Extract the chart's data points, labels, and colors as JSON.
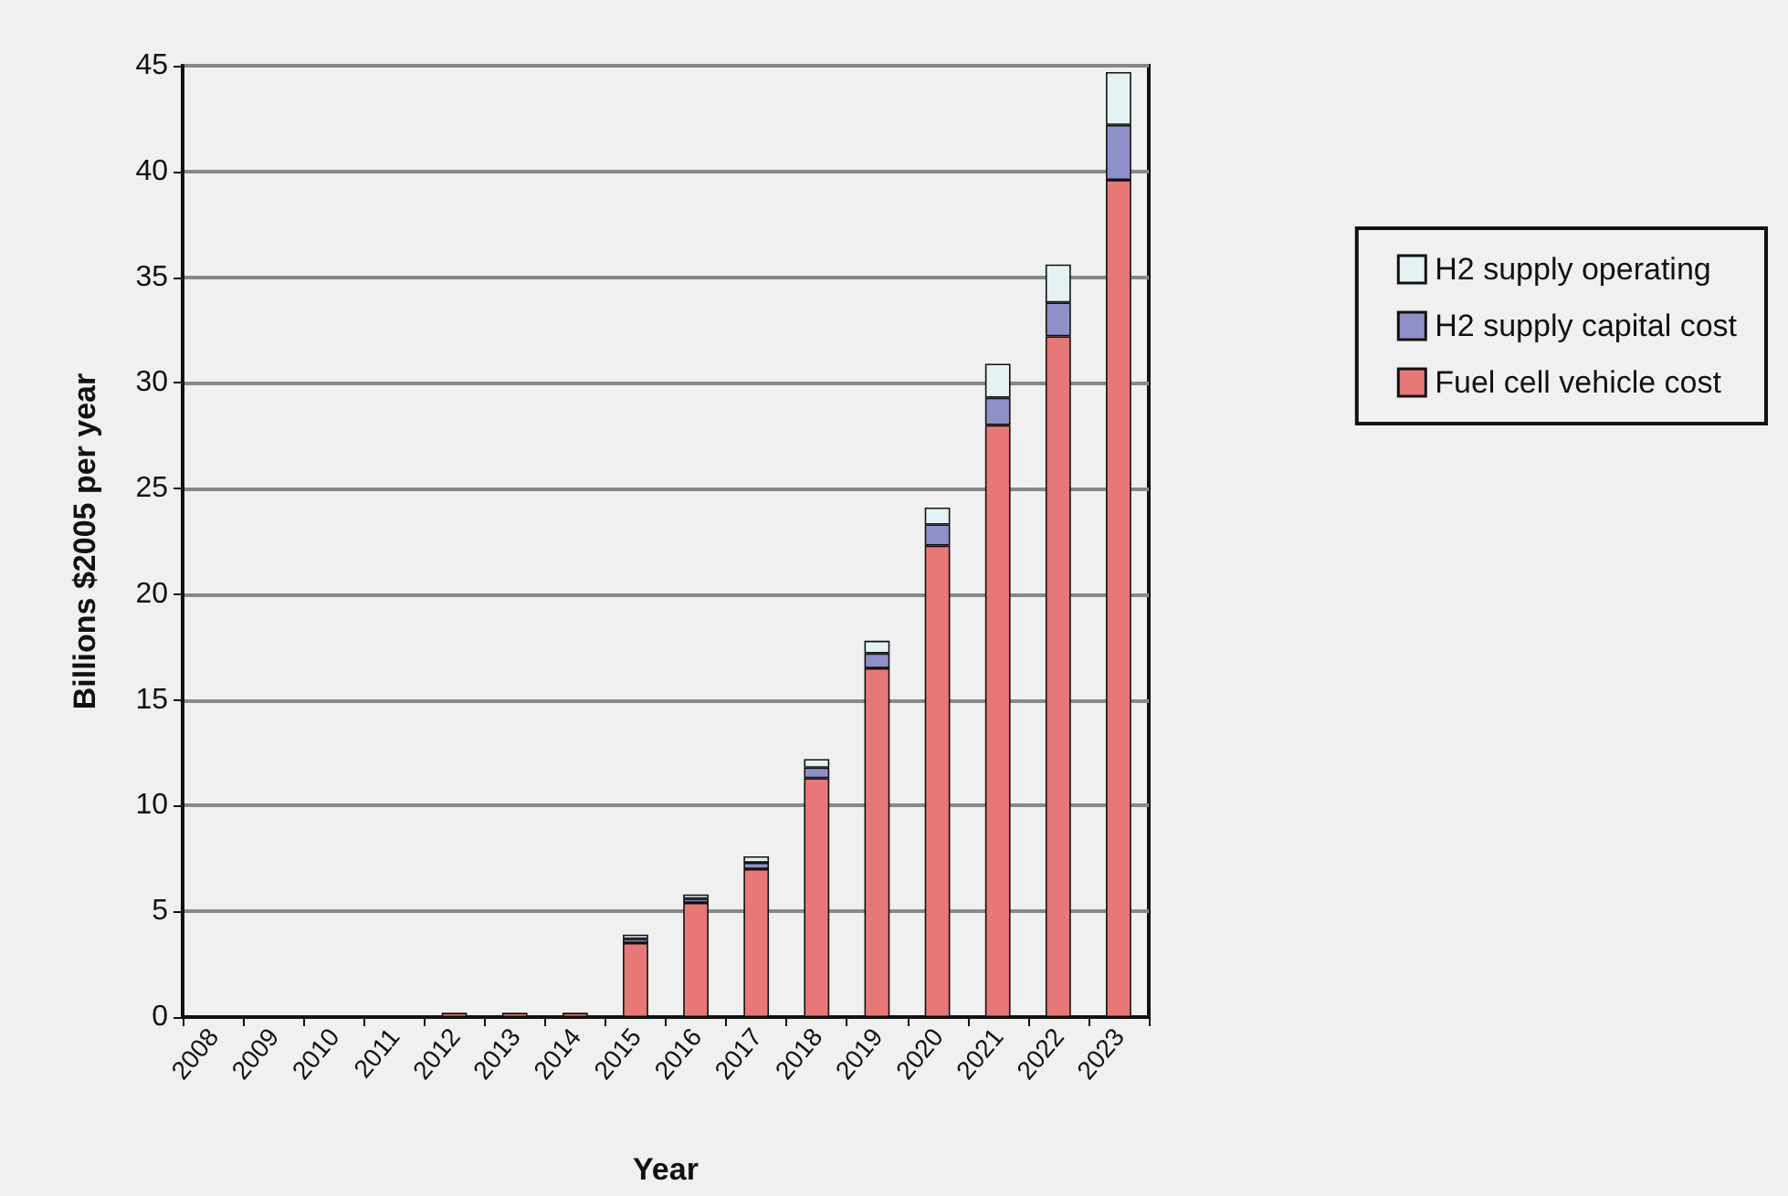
{
  "chart_data": {
    "type": "bar",
    "xlabel": "Year",
    "ylabel": "Billions $2005 per year",
    "categories": [
      "2008",
      "2009",
      "2010",
      "2011",
      "2012",
      "2013",
      "2014",
      "2015",
      "2016",
      "2017",
      "2018",
      "2019",
      "2020",
      "2021",
      "2022",
      "2023"
    ],
    "stacked": true,
    "series": [
      {
        "name": "Fuel cell vehicle cost",
        "color": "#e87878",
        "values": [
          null,
          null,
          null,
          null,
          0.2,
          0.2,
          0.2,
          3.5,
          5.4,
          7.0,
          11.3,
          16.5,
          22.3,
          28.0,
          32.2,
          39.6
        ]
      },
      {
        "name": "H2 supply capital cost",
        "color": "#9090c8",
        "values": [
          null,
          null,
          null,
          null,
          null,
          null,
          null,
          0.2,
          0.2,
          0.3,
          0.5,
          0.7,
          1.0,
          1.3,
          1.6,
          2.6
        ]
      },
      {
        "name": "H2 supply operating",
        "color": "#e4f2f4",
        "values": [
          null,
          null,
          null,
          null,
          null,
          null,
          null,
          0.2,
          0.2,
          0.3,
          0.4,
          0.6,
          0.8,
          1.6,
          1.8,
          2.5
        ]
      }
    ],
    "ylim": [
      0,
      45
    ],
    "yticks": [
      0,
      5,
      10,
      15,
      20,
      25,
      30,
      35,
      40,
      45
    ],
    "grid": "y",
    "legend": "right"
  }
}
